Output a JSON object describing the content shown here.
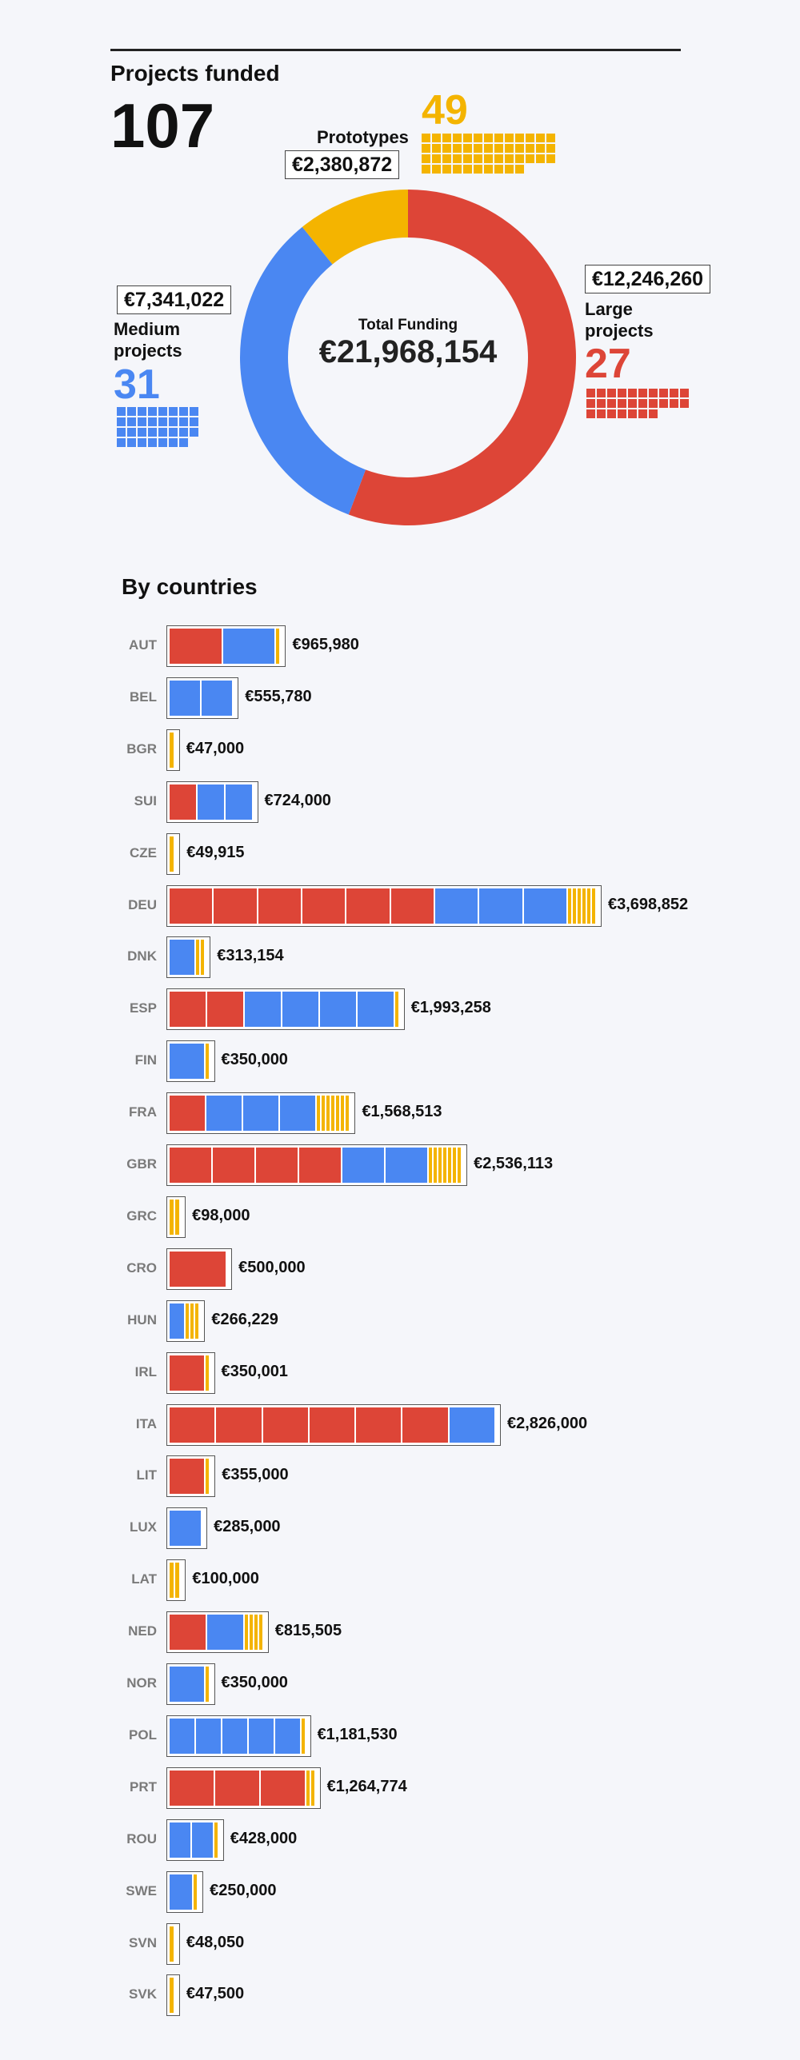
{
  "header": {
    "projects_title": "Projects funded",
    "projects_count": "107"
  },
  "colors": {
    "large": "#dd4537",
    "medium": "#4a87f2",
    "prototypes": "#f4b400"
  },
  "categories": {
    "prototypes": {
      "label": "Prototypes",
      "count": "49",
      "amount": "€2,380,872"
    },
    "medium": {
      "label_line1": "Medium",
      "label_line2": "projects",
      "count": "31",
      "amount": "€7,341,022"
    },
    "large": {
      "label_line1": "Large",
      "label_line2": "projects",
      "count": "27",
      "amount": "€12,246,260"
    }
  },
  "donut": {
    "center_label": "Total Funding",
    "center_value": "€21,968,154"
  },
  "countries_title": "By countries",
  "chart_data": [
    {
      "type": "pie",
      "title": "Total Funding",
      "labels": [
        "Large projects",
        "Medium projects",
        "Prototypes"
      ],
      "values": [
        12246260,
        7341022,
        2380872
      ],
      "counts": [
        27,
        31,
        49
      ]
    },
    {
      "type": "bar",
      "title": "By countries",
      "unit": "€",
      "categories": [
        "AUT",
        "BEL",
        "BGR",
        "SUI",
        "CZE",
        "DEU",
        "DNK",
        "ESP",
        "FIN",
        "FRA",
        "GBR",
        "GRC",
        "CRO",
        "HUN",
        "IRL",
        "ITA",
        "LIT",
        "LUX",
        "LAT",
        "NED",
        "NOR",
        "POL",
        "PRT",
        "ROU",
        "SWE",
        "SVN",
        "SVK"
      ],
      "totals": [
        "€965,980",
        "€555,780",
        "€47,000",
        "€724,000",
        "€49,915",
        "€3,698,852",
        "€313,154",
        "€1,993,258",
        "€350,000",
        "€1,568,513",
        "€2,536,113",
        "€98,000",
        "€500,000",
        "€266,229",
        "€350,001",
        "€2,826,000",
        "€355,000",
        "€285,000",
        "€100,000",
        "€815,505",
        "€350,000",
        "€1,181,530",
        "€1,264,774",
        "€428,000",
        "€250,000",
        "€48,050",
        "€47,500"
      ],
      "series": [
        {
          "name": "Large projects",
          "values": [
            1,
            0,
            0,
            1,
            0,
            6,
            0,
            2,
            0,
            1,
            4,
            0,
            1,
            0,
            1,
            6,
            1,
            0,
            0,
            1,
            0,
            0,
            3,
            0,
            0,
            0,
            0
          ]
        },
        {
          "name": "Medium projects",
          "values": [
            1,
            2,
            0,
            2,
            0,
            3,
            1,
            4,
            1,
            3,
            2,
            0,
            0,
            1,
            0,
            1,
            0,
            1,
            0,
            1,
            1,
            5,
            0,
            2,
            1,
            0,
            0
          ]
        },
        {
          "name": "Prototypes",
          "values": [
            1,
            0,
            1,
            0,
            1,
            6,
            2,
            1,
            1,
            7,
            7,
            2,
            0,
            3,
            1,
            0,
            1,
            0,
            2,
            4,
            1,
            1,
            2,
            1,
            1,
            1,
            1
          ]
        }
      ]
    }
  ]
}
